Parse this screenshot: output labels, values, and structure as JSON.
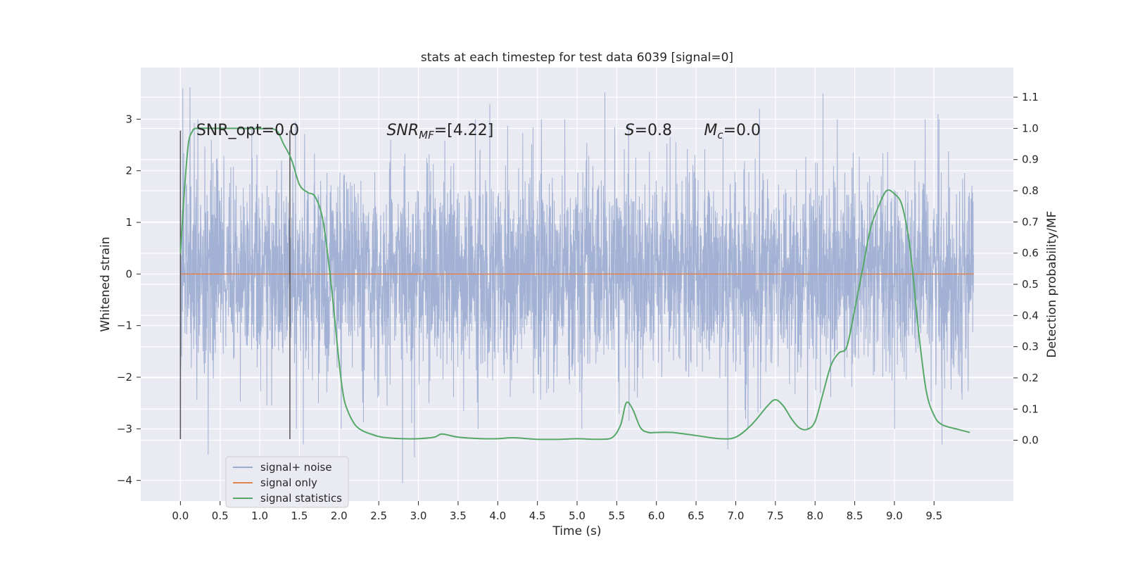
{
  "chart_data": {
    "type": "line",
    "title": "stats at each timestep for test data 6039 [signal=0]",
    "xlabel": "Time (s)",
    "ylabel": "Whitened strain",
    "ylabel_right": "Detection probability/MF",
    "xlim": [
      -0.5,
      10.5
    ],
    "ylim": [
      -4.4,
      4.0
    ],
    "ylim_right": [
      -0.195,
      1.195
    ],
    "x_ticks": [
      0.0,
      0.5,
      1.0,
      1.5,
      2.0,
      2.5,
      3.0,
      3.5,
      4.0,
      4.5,
      5.0,
      5.5,
      6.0,
      6.5,
      7.0,
      7.5,
      8.0,
      8.5,
      9.0,
      9.5
    ],
    "x_tick_labels": [
      "0.0",
      "0.5",
      "1.0",
      "1.5",
      "2.0",
      "2.5",
      "3.0",
      "3.5",
      "4.0",
      "4.5",
      "5.0",
      "5.5",
      "6.0",
      "6.5",
      "7.0",
      "7.5",
      "8.0",
      "8.5",
      "9.0",
      "9.5"
    ],
    "y_ticks": [
      3,
      2,
      1,
      0,
      -1,
      -2,
      -3,
      -4
    ],
    "y_tick_labels": [
      "3",
      "2",
      "1",
      "0",
      "−1",
      "−2",
      "−3",
      "−4"
    ],
    "y_ticks_right": [
      1.1,
      1.0,
      0.9,
      0.8,
      0.7,
      0.6,
      0.5,
      0.4,
      0.3,
      0.2,
      0.1,
      0.0
    ],
    "y_tick_labels_right": [
      "1.1",
      "1.0",
      "0.9",
      "0.8",
      "0.7",
      "0.6",
      "0.5",
      "0.4",
      "0.3",
      "0.2",
      "0.1",
      "0.0"
    ],
    "grid": true,
    "legend_position": "lower-left",
    "annotations": [
      {
        "text": "SNR_opt=0.0",
        "x": 0.2,
        "y": 2.8
      },
      {
        "text": "SNR_MF=[4.22]",
        "x": 2.6,
        "y": 2.8
      },
      {
        "text": "S=0.8",
        "x": 5.6,
        "y": 2.8
      },
      {
        "text": "M_c=0.0",
        "x": 6.6,
        "y": 2.8
      }
    ],
    "vlines": [
      0.0,
      1.38
    ],
    "vline_range": [
      -3.2,
      2.78
    ],
    "series": [
      {
        "name": "signal+ noise",
        "axis": "left",
        "color": "#9aabd0",
        "kind": "noise",
        "x_range": [
          0.0,
          10.0
        ],
        "envelope_typical": [
          -1.9,
          2.0
        ],
        "peaks": [
          {
            "x": 0.03,
            "y": 3.6
          },
          {
            "x": 0.12,
            "y": 3.62
          },
          {
            "x": 0.22,
            "y": 3.0
          },
          {
            "x": 0.35,
            "y": -3.5
          },
          {
            "x": 0.9,
            "y": 2.8
          },
          {
            "x": 1.45,
            "y": 2.95
          },
          {
            "x": 1.55,
            "y": -3.3
          },
          {
            "x": 2.8,
            "y": -4.05
          },
          {
            "x": 2.95,
            "y": -3.55
          },
          {
            "x": 3.9,
            "y": 3.3
          },
          {
            "x": 5.35,
            "y": 3.52
          },
          {
            "x": 6.9,
            "y": -3.4
          },
          {
            "x": 8.1,
            "y": 3.5
          },
          {
            "x": 7.3,
            "y": 3.2
          },
          {
            "x": 9.6,
            "y": -3.3
          },
          {
            "x": 9.55,
            "y": 3.1
          }
        ]
      },
      {
        "name": "signal only",
        "axis": "left",
        "color": "#dd8452",
        "x": [
          0.0,
          10.0
        ],
        "y": [
          0.0,
          0.0
        ]
      },
      {
        "name": "signal statistics",
        "axis": "right",
        "color": "#55a868",
        "x": [
          0.0,
          0.05,
          0.1,
          0.15,
          0.2,
          0.4,
          0.6,
          0.8,
          1.0,
          1.2,
          1.3,
          1.4,
          1.5,
          1.6,
          1.7,
          1.8,
          1.9,
          2.0,
          2.05,
          2.1,
          2.2,
          2.3,
          2.4,
          2.5,
          2.6,
          2.8,
          3.0,
          3.2,
          3.3,
          3.5,
          3.8,
          4.0,
          4.2,
          4.5,
          4.8,
          5.0,
          5.3,
          5.45,
          5.55,
          5.62,
          5.7,
          5.8,
          5.9,
          6.0,
          6.2,
          6.5,
          6.8,
          7.0,
          7.2,
          7.4,
          7.5,
          7.6,
          7.7,
          7.8,
          7.9,
          8.0,
          8.1,
          8.2,
          8.3,
          8.4,
          8.5,
          8.6,
          8.7,
          8.8,
          8.9,
          9.0,
          9.1,
          9.2,
          9.3,
          9.4,
          9.5,
          9.6,
          9.8,
          9.95
        ],
        "y": [
          0.6,
          0.8,
          0.95,
          0.99,
          1.0,
          1.0,
          1.0,
          1.0,
          0.999,
          0.995,
          0.95,
          0.9,
          0.82,
          0.795,
          0.78,
          0.7,
          0.5,
          0.25,
          0.15,
          0.1,
          0.05,
          0.03,
          0.02,
          0.012,
          0.008,
          0.005,
          0.005,
          0.01,
          0.02,
          0.01,
          0.005,
          0.005,
          0.008,
          0.003,
          0.003,
          0.005,
          0.003,
          0.01,
          0.05,
          0.12,
          0.1,
          0.04,
          0.025,
          0.025,
          0.025,
          0.015,
          0.005,
          0.01,
          0.05,
          0.11,
          0.13,
          0.11,
          0.07,
          0.04,
          0.035,
          0.06,
          0.15,
          0.24,
          0.28,
          0.3,
          0.42,
          0.55,
          0.68,
          0.75,
          0.8,
          0.79,
          0.75,
          0.61,
          0.36,
          0.16,
          0.08,
          0.05,
          0.035,
          0.025
        ]
      }
    ]
  }
}
